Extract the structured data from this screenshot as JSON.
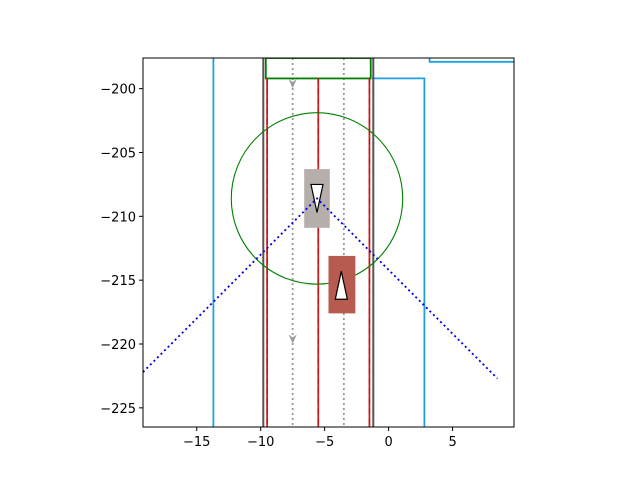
{
  "chart_data": {
    "type": "scatter",
    "title": "",
    "xlabel": "",
    "ylabel": "",
    "xlim": [
      -19.2,
      9.8
    ],
    "ylim": [
      -226.5,
      -197.6
    ],
    "grid": false,
    "x_ticks": [
      {
        "value": -15,
        "label": "−15"
      },
      {
        "value": -10,
        "label": "−10"
      },
      {
        "value": -5,
        "label": "−5"
      },
      {
        "value": 0,
        "label": "0"
      },
      {
        "value": 5,
        "label": "5"
      }
    ],
    "y_ticks": [
      {
        "value": -200,
        "label": "−200"
      },
      {
        "value": -205,
        "label": "−205"
      },
      {
        "value": -210,
        "label": "−210"
      },
      {
        "value": -215,
        "label": "−215"
      },
      {
        "value": -220,
        "label": "−220"
      },
      {
        "value": -225,
        "label": "−225"
      }
    ],
    "colors": {
      "road_boundary": "#1f9fe0",
      "lane_edge": "#555555",
      "lane_marking": "#e02020",
      "lane_direction": "#999999",
      "goal_region": "#008000",
      "sensor_range": "#008000",
      "field_of_view": "#0000dd",
      "ego_vehicle": "#b5aeab",
      "obstacle_vehicle": "#b75a4f",
      "direction_arrow_fill": "#ffffff",
      "direction_arrow_stroke": "#000000"
    },
    "road_boundaries": [
      {
        "name": "left-road-boundary",
        "points": [
          [
            -13.7,
            -197.6
          ],
          [
            -13.7,
            -226.5
          ]
        ]
      },
      {
        "name": "right-road-boundary",
        "points": [
          [
            -1.3,
            -199.2
          ],
          [
            2.8,
            -199.2
          ],
          [
            2.8,
            -226.5
          ]
        ]
      },
      {
        "name": "corner-road-boundary",
        "points": [
          [
            3.2,
            -197.6
          ],
          [
            3.2,
            -197.9
          ],
          [
            9.8,
            -197.9
          ]
        ]
      }
    ],
    "lane_edges": [
      {
        "name": "left-lane-edge",
        "points": [
          [
            -9.8,
            -197.6
          ],
          [
            -9.8,
            -226.5
          ]
        ]
      },
      {
        "name": "right-lane-edge",
        "points": [
          [
            -1.2,
            -197.6
          ],
          [
            -1.2,
            -226.5
          ]
        ]
      }
    ],
    "lane_markings": [
      {
        "name": "left-lane-marking",
        "x": -9.5,
        "y_range": [
          -199.2,
          -226.5
        ]
      },
      {
        "name": "center-lane-marking",
        "x": -5.5,
        "y_range": [
          -199.2,
          -226.5
        ]
      },
      {
        "name": "right-lane-marking",
        "x": -1.5,
        "y_range": [
          -199.2,
          -226.5
        ]
      }
    ],
    "lane_direction_lines": [
      {
        "name": "lane-direction-left",
        "x": -7.5,
        "y_range": [
          -197.6,
          -226.5
        ],
        "arrows_at": [
          -199.8,
          -219.8
        ]
      },
      {
        "name": "lane-direction-right",
        "x": -3.5,
        "y_range": [
          -197.6,
          -226.5
        ],
        "arrows_at": []
      }
    ],
    "goal_region": {
      "x_range": [
        -9.6,
        -1.4
      ],
      "y_range": [
        -197.6,
        -199.2
      ]
    },
    "sensor_range": {
      "center": [
        -5.6,
        -208.6
      ],
      "radius": 6.7
    },
    "field_of_view": [
      [
        -19.2,
        -222.2
      ],
      [
        -5.6,
        -208.6
      ],
      [
        8.5,
        -222.7
      ]
    ],
    "vehicles": [
      {
        "name": "ego-vehicle",
        "role": "ego_vehicle",
        "x_range": [
          -6.6,
          -4.6
        ],
        "y_range": [
          -206.3,
          -210.9
        ],
        "heading": "down",
        "arrow_center": [
          -5.6,
          -208.6
        ]
      },
      {
        "name": "obstacle-vehicle",
        "role": "obstacle_vehicle",
        "x_range": [
          -4.7,
          -2.6
        ],
        "y_range": [
          -213.1,
          -217.6
        ],
        "heading": "up",
        "arrow_center": [
          -3.7,
          -215.4
        ]
      }
    ]
  }
}
